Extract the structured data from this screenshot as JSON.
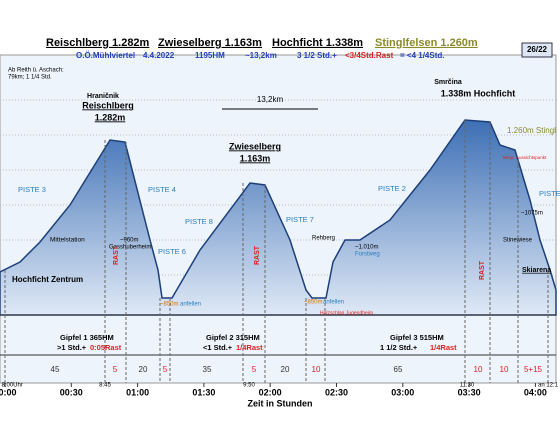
{
  "header": {
    "peaks": [
      "Reischlberg 1.282m",
      "Zwieselberg 1.163m",
      "Hochficht 1.338m",
      "Stinglfelsen 1.260m"
    ],
    "page": "26/22",
    "info": [
      "O.Ö.Mühlviertel",
      "4.4.2022",
      "1195HM",
      "~13,2km",
      "3 1/2 Std.+",
      "<3/4Std.Rast",
      "= <4 1/4Std."
    ]
  },
  "note": [
    "Ab Reith ü. Aschach:",
    "79km; 1 1/4 Std."
  ],
  "distance": "13,2km",
  "summits": [
    [
      "Hraničnik",
      "Reischlberg",
      "1.282m"
    ],
    [
      "Zwieselberg",
      "1.163m"
    ],
    [
      "Smrčina",
      "1.338m Hochficht"
    ],
    [
      "1.260m Stingl"
    ]
  ],
  "pistes": [
    "PISTE 3",
    "PISTE 4",
    "PISTE 6",
    "PISTE 8",
    "PISTE 7",
    "PISTE 2",
    "PISTE"
  ],
  "places": [
    "Mittelstation",
    "~960m",
    "Gasshuberheim",
    "Hochficht Zentrum",
    "~850m",
    "anfellen",
    "~850m",
    "anfellen",
    "Holzschlag Jugendheim",
    "Rehberg",
    "~1.010m",
    "Forstweg",
    "Bergr. Aussichtspunkt",
    "~1075m",
    "Stinewiese",
    "Skiarena"
  ],
  "rest": "RAST",
  "legs": [
    {
      "title": "Gipfel 1  365HM",
      "time": ">1 Std.+",
      "rest": "0:05Rast"
    },
    {
      "title": "Gipfel 2  315HM",
      "time": "<1 Std.+",
      "rest": "1/4Rast"
    },
    {
      "title": "Gipfel 3  515HM",
      "time": "1 1/2 Std.+",
      "rest": "1/4Rast"
    }
  ],
  "durations": [
    "45",
    "5",
    "20",
    "5",
    "35",
    "5",
    "20",
    "10",
    "65",
    "10",
    "10",
    "5+15"
  ],
  "clock": [
    "ab 8:00Uhr",
    "8:45",
    "9:50",
    "11:30",
    "an 12:1"
  ],
  "axis": {
    "ticks": [
      "00:00",
      "00:30",
      "01:00",
      "01:30",
      "02:00",
      "02:30",
      "03:00",
      "03:30",
      "04:00"
    ],
    "label": "Zeit in Stunden"
  }
}
